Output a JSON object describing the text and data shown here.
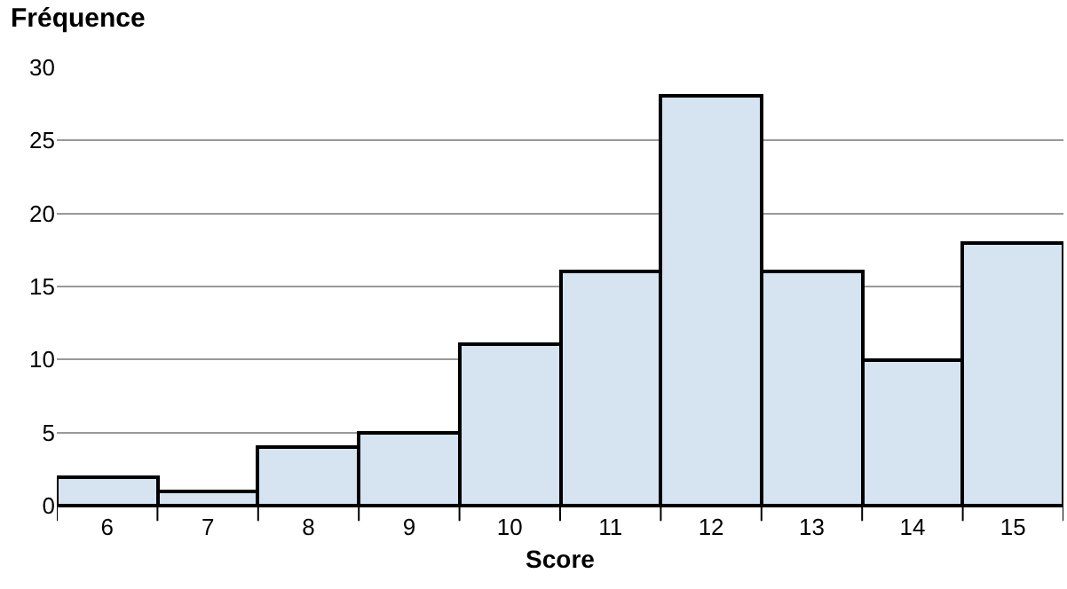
{
  "chart_data": {
    "type": "bar",
    "xlabel": "Score",
    "ylabel": "Fréquence",
    "categories": [
      "6",
      "7",
      "8",
      "9",
      "10",
      "11",
      "12",
      "13",
      "14",
      "15"
    ],
    "values": [
      2,
      1,
      4,
      5,
      11,
      16,
      28,
      16,
      10,
      18
    ],
    "color": "#d6e4f2",
    "ylim": [
      0,
      30
    ],
    "yticks": [
      0,
      5,
      10,
      15,
      20,
      25,
      30
    ],
    "grid": "y",
    "legend": false
  }
}
